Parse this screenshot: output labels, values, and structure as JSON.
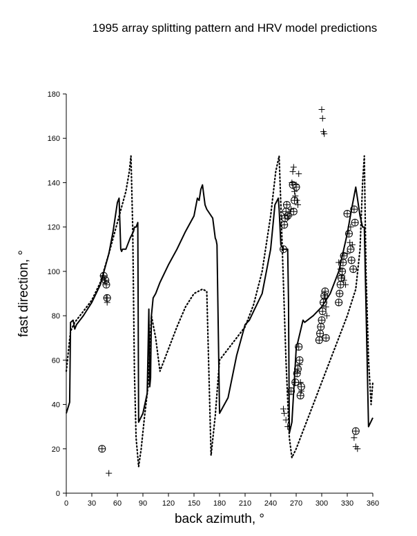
{
  "chart_data": {
    "type": "scatter",
    "title": "1995 array splitting pattern and HRV model predictions",
    "xlabel": "back azimuth, °",
    "ylabel": "fast direction, °",
    "xlim": [
      0,
      360
    ],
    "ylim": [
      0,
      180
    ],
    "xticks": [
      0,
      30,
      60,
      90,
      120,
      150,
      180,
      210,
      240,
      270,
      300,
      330,
      360
    ],
    "yticks": [
      0,
      20,
      40,
      60,
      80,
      100,
      120,
      140,
      160,
      180
    ],
    "grid": false,
    "legend": "none",
    "series": [
      {
        "style": "solid-line",
        "x": [
          0,
          4,
          5,
          8,
          10,
          12,
          20,
          30,
          40,
          50,
          55,
          60,
          62,
          64,
          65,
          66,
          70,
          75,
          79,
          80,
          82,
          84,
          85,
          90,
          95,
          97,
          98,
          99,
          100,
          102,
          105,
          110,
          120,
          130,
          140,
          150,
          154,
          156,
          158,
          160,
          163,
          165,
          172,
          175,
          176,
          177,
          180,
          190,
          200,
          210,
          215,
          220,
          230,
          240,
          245,
          249,
          250,
          252,
          255,
          258,
          260,
          261,
          262,
          265,
          270,
          278,
          280,
          290,
          300,
          310,
          320,
          330,
          335,
          340,
          345,
          348,
          350,
          355,
          360
        ],
        "y": [
          36,
          41,
          77,
          78,
          74,
          76,
          80,
          86,
          94,
          108,
          118,
          131,
          133,
          110,
          109,
          110,
          110,
          115,
          118,
          120,
          120,
          122,
          32,
          36,
          45,
          83,
          48,
          52,
          80,
          88,
          90,
          95,
          103,
          110,
          118,
          125,
          133,
          132,
          137,
          139,
          130,
          128,
          124,
          115,
          114,
          112,
          36,
          43,
          62,
          76,
          78,
          82,
          90,
          110,
          130,
          133,
          128,
          112,
          110,
          110,
          110,
          86,
          27,
          32,
          65,
          78,
          77,
          80,
          84,
          90,
          100,
          117,
          128,
          138,
          125,
          120,
          120,
          30,
          34
        ]
      },
      {
        "style": "dotted-line",
        "x": [
          0,
          5,
          10,
          20,
          30,
          40,
          50,
          60,
          70,
          74,
          76,
          78,
          80,
          82,
          85,
          88,
          92,
          96,
          100,
          105,
          110,
          120,
          130,
          140,
          150,
          160,
          165,
          170,
          175,
          180,
          190,
          200,
          210,
          220,
          230,
          240,
          246,
          250,
          252,
          255,
          258,
          262,
          265,
          270,
          280,
          290,
          300,
          310,
          320,
          330,
          340,
          345,
          348,
          350,
          352,
          355,
          358,
          360
        ],
        "y": [
          55,
          73,
          77,
          82,
          87,
          95,
          108,
          122,
          136,
          145,
          152,
          120,
          55,
          25,
          12,
          20,
          35,
          48,
          80,
          70,
          55,
          65,
          75,
          84,
          90,
          92,
          91,
          17,
          35,
          60,
          65,
          70,
          75,
          85,
          100,
          125,
          145,
          152,
          130,
          95,
          60,
          25,
          16,
          20,
          30,
          40,
          50,
          60,
          70,
          80,
          92,
          110,
          140,
          152,
          100,
          60,
          40,
          50
        ]
      },
      {
        "style": "plus",
        "x": [
          43,
          45,
          47,
          48,
          50,
          255,
          256,
          258,
          260,
          262,
          264,
          265,
          266,
          267,
          268,
          269,
          270,
          271,
          272,
          273,
          274,
          275,
          276,
          300,
          301,
          302,
          303,
          304,
          305,
          306,
          320,
          322,
          324,
          326,
          328,
          330,
          333,
          334,
          336,
          338,
          340,
          342
        ],
        "y": [
          98,
          96,
          88,
          86,
          9,
          38,
          36,
          33,
          30,
          125,
          128,
          140,
          145,
          147,
          136,
          134,
          139,
          132,
          130,
          144,
          58,
          50,
          46,
          173,
          169,
          163,
          162,
          88,
          84,
          80,
          104,
          101,
          98,
          96,
          94,
          108,
          113,
          120,
          112,
          25,
          21,
          20
        ]
      },
      {
        "style": "circle-plus",
        "x": [
          42,
          44,
          46,
          47,
          48,
          255,
          256,
          257,
          258,
          259,
          260,
          264,
          266,
          267,
          268,
          269,
          270,
          271,
          272,
          273,
          274,
          275,
          276,
          297,
          298,
          299,
          300,
          301,
          302,
          303,
          304,
          305,
          320,
          321,
          322,
          323,
          324,
          325,
          326,
          330,
          332,
          334,
          335,
          337,
          338,
          339,
          340
        ],
        "y": [
          20,
          98,
          96,
          94,
          88,
          110,
          121,
          124,
          127,
          130,
          125,
          46,
          139,
          127,
          132,
          50,
          138,
          54,
          56,
          66,
          60,
          44,
          48,
          69,
          72,
          75,
          78,
          82,
          86,
          89,
          91,
          70,
          86,
          90,
          94,
          97,
          100,
          104,
          107,
          126,
          117,
          110,
          105,
          101,
          128,
          122,
          28
        ]
      }
    ]
  }
}
